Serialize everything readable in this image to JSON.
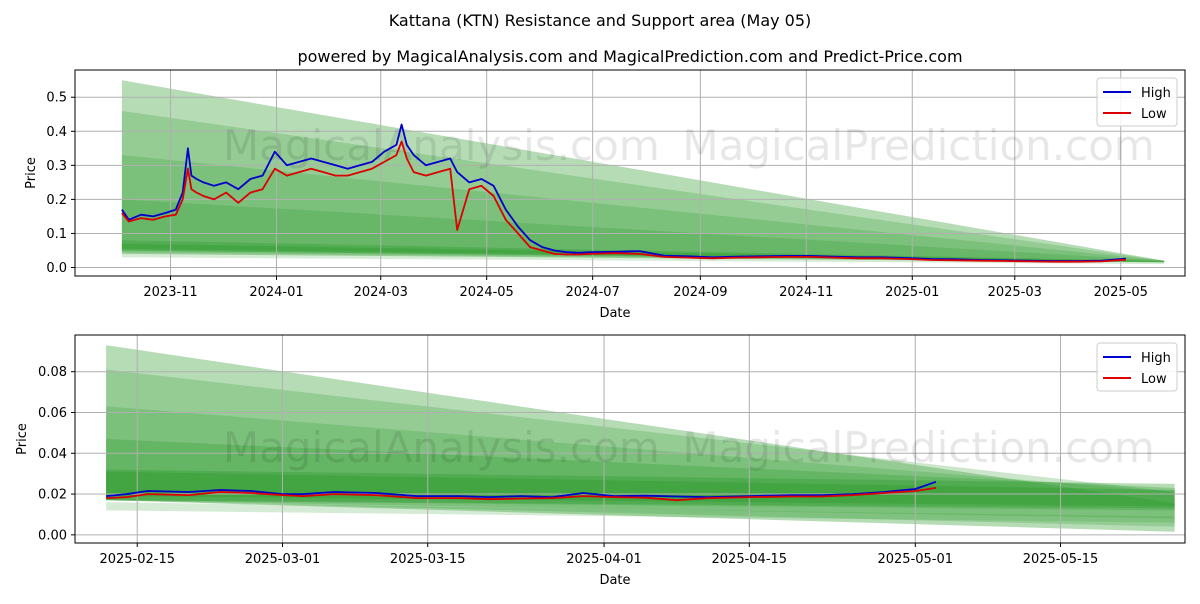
{
  "title": "Kattana (KTN) Resistance and Support area (May 05)",
  "subtitle": "powered by MagicalAnalysis.com and MagicalPrediction.com and Predict-Price.com",
  "watermarks": [
    "MagicalAnalysis.com",
    "MagicalPrediction.com"
  ],
  "colors": {
    "high": "#0000cc",
    "low": "#dd0000",
    "band": "#2e9a2e",
    "grid": "#b0b0b0"
  },
  "chart_data": [
    {
      "type": "line",
      "xlabel": "Date",
      "ylabel": "Price",
      "grid": true,
      "legend_placement": "top-right",
      "xlim": [
        "2023-09-07",
        "2025-06-07"
      ],
      "ylim": [
        -0.025,
        0.58
      ],
      "x_ticks": [
        "2023-11",
        "2024-01",
        "2024-03",
        "2024-05",
        "2024-07",
        "2024-09",
        "2024-11",
        "2025-01",
        "2025-03",
        "2025-05"
      ],
      "y_ticks": [
        "0.0",
        "0.1",
        "0.2",
        "0.3",
        "0.4",
        "0.5"
      ],
      "series": [
        {
          "name": "High",
          "x": [
            "2023-10-04",
            "2023-10-08",
            "2023-10-15",
            "2023-10-22",
            "2023-10-29",
            "2023-11-04",
            "2023-11-08",
            "2023-11-11",
            "2023-11-13",
            "2023-11-16",
            "2023-11-20",
            "2023-11-26",
            "2023-12-03",
            "2023-12-10",
            "2023-12-17",
            "2023-12-24",
            "2023-12-31",
            "2024-01-07",
            "2024-01-14",
            "2024-01-21",
            "2024-01-28",
            "2024-02-04",
            "2024-02-11",
            "2024-02-18",
            "2024-02-25",
            "2024-03-03",
            "2024-03-10",
            "2024-03-13",
            "2024-03-16",
            "2024-03-20",
            "2024-03-27",
            "2024-04-03",
            "2024-04-10",
            "2024-04-14",
            "2024-04-21",
            "2024-04-28",
            "2024-05-05",
            "2024-05-12",
            "2024-05-19",
            "2024-05-26",
            "2024-06-02",
            "2024-06-09",
            "2024-06-16",
            "2024-06-23",
            "2024-06-30",
            "2024-07-14",
            "2024-07-28",
            "2024-08-11",
            "2024-08-25",
            "2024-09-08",
            "2024-09-22",
            "2024-10-06",
            "2024-10-20",
            "2024-11-03",
            "2024-11-17",
            "2024-12-01",
            "2024-12-15",
            "2024-12-29",
            "2025-01-12",
            "2025-01-26",
            "2025-02-09",
            "2025-02-23",
            "2025-03-09",
            "2025-03-23",
            "2025-04-06",
            "2025-04-20",
            "2025-05-04"
          ],
          "values": [
            0.17,
            0.14,
            0.155,
            0.15,
            0.16,
            0.17,
            0.22,
            0.35,
            0.27,
            0.26,
            0.25,
            0.24,
            0.25,
            0.23,
            0.26,
            0.27,
            0.34,
            0.3,
            0.31,
            0.32,
            0.31,
            0.3,
            0.29,
            0.3,
            0.31,
            0.34,
            0.36,
            0.42,
            0.36,
            0.33,
            0.3,
            0.31,
            0.32,
            0.28,
            0.25,
            0.26,
            0.24,
            0.17,
            0.12,
            0.08,
            0.06,
            0.05,
            0.045,
            0.043,
            0.045,
            0.046,
            0.048,
            0.035,
            0.033,
            0.03,
            0.032,
            0.033,
            0.034,
            0.034,
            0.032,
            0.03,
            0.03,
            0.028,
            0.025,
            0.024,
            0.022,
            0.021,
            0.02,
            0.019,
            0.019,
            0.02,
            0.026
          ]
        },
        {
          "name": "Low",
          "x": [
            "2023-10-04",
            "2023-10-08",
            "2023-10-15",
            "2023-10-22",
            "2023-10-29",
            "2023-11-04",
            "2023-11-08",
            "2023-11-11",
            "2023-11-13",
            "2023-11-16",
            "2023-11-20",
            "2023-11-26",
            "2023-12-03",
            "2023-12-10",
            "2023-12-17",
            "2023-12-24",
            "2023-12-31",
            "2024-01-07",
            "2024-01-14",
            "2024-01-21",
            "2024-01-28",
            "2024-02-04",
            "2024-02-11",
            "2024-02-18",
            "2024-02-25",
            "2024-03-03",
            "2024-03-10",
            "2024-03-13",
            "2024-03-16",
            "2024-03-20",
            "2024-03-27",
            "2024-04-03",
            "2024-04-10",
            "2024-04-14",
            "2024-04-21",
            "2024-04-28",
            "2024-05-05",
            "2024-05-12",
            "2024-05-19",
            "2024-05-26",
            "2024-06-02",
            "2024-06-09",
            "2024-06-16",
            "2024-06-23",
            "2024-06-30",
            "2024-07-14",
            "2024-07-28",
            "2024-08-11",
            "2024-08-25",
            "2024-09-08",
            "2024-09-22",
            "2024-10-06",
            "2024-10-20",
            "2024-11-03",
            "2024-11-17",
            "2024-12-01",
            "2024-12-15",
            "2024-12-29",
            "2025-01-12",
            "2025-01-26",
            "2025-02-09",
            "2025-02-23",
            "2025-03-09",
            "2025-03-23",
            "2025-04-06",
            "2025-04-20",
            "2025-05-04"
          ],
          "values": [
            0.16,
            0.135,
            0.145,
            0.14,
            0.15,
            0.155,
            0.2,
            0.29,
            0.23,
            0.22,
            0.21,
            0.2,
            0.22,
            0.19,
            0.22,
            0.23,
            0.29,
            0.27,
            0.28,
            0.29,
            0.28,
            0.27,
            0.27,
            0.28,
            0.29,
            0.31,
            0.33,
            0.37,
            0.32,
            0.28,
            0.27,
            0.28,
            0.29,
            0.11,
            0.23,
            0.24,
            0.21,
            0.14,
            0.1,
            0.06,
            0.05,
            0.04,
            0.038,
            0.038,
            0.04,
            0.042,
            0.04,
            0.031,
            0.029,
            0.027,
            0.029,
            0.03,
            0.031,
            0.031,
            0.029,
            0.027,
            0.027,
            0.025,
            0.022,
            0.021,
            0.02,
            0.019,
            0.018,
            0.017,
            0.017,
            0.018,
            0.023
          ]
        }
      ],
      "bands": [
        {
          "x": [
            "2023-10-04",
            "2025-05-26"
          ],
          "lower": [
            0.04,
            0.015
          ],
          "upper": [
            0.55,
            0.02
          ],
          "opacity": 0.35
        },
        {
          "x": [
            "2023-10-04",
            "2025-05-26"
          ],
          "lower": [
            0.04,
            0.015
          ],
          "upper": [
            0.46,
            0.02
          ],
          "opacity": 0.25
        },
        {
          "x": [
            "2023-10-04",
            "2025-05-26"
          ],
          "lower": [
            0.045,
            0.015
          ],
          "upper": [
            0.33,
            0.02
          ],
          "opacity": 0.25
        },
        {
          "x": [
            "2023-10-04",
            "2025-05-26"
          ],
          "lower": [
            0.05,
            0.016
          ],
          "upper": [
            0.2,
            0.02
          ],
          "opacity": 0.25
        },
        {
          "x": [
            "2023-10-04",
            "2025-05-26"
          ],
          "lower": [
            0.05,
            0.016
          ],
          "upper": [
            0.08,
            0.019
          ],
          "opacity": 0.35
        },
        {
          "x": [
            "2023-10-04",
            "2025-05-26"
          ],
          "lower": [
            0.055,
            0.017
          ],
          "upper": [
            0.07,
            0.019
          ],
          "opacity": 0.4
        },
        {
          "x": [
            "2023-10-04",
            "2025-05-26"
          ],
          "lower": [
            0.03,
            0.01
          ],
          "upper": [
            0.04,
            0.015
          ],
          "opacity": 0.2
        }
      ]
    },
    {
      "type": "line",
      "xlabel": "Date",
      "ylabel": "Price",
      "grid": true,
      "legend_placement": "top-right",
      "xlim": [
        "2025-02-09",
        "2025-05-27"
      ],
      "ylim": [
        -0.004,
        0.098
      ],
      "x_ticks": [
        "2025-02-15",
        "2025-03-01",
        "2025-03-15",
        "2025-04-01",
        "2025-04-15",
        "2025-05-01",
        "2025-05-15"
      ],
      "y_ticks": [
        "0.00",
        "0.02",
        "0.04",
        "0.06",
        "0.08"
      ],
      "series": [
        {
          "name": "High",
          "x": [
            "2025-02-12",
            "2025-02-14",
            "2025-02-16",
            "2025-02-20",
            "2025-02-23",
            "2025-02-26",
            "2025-03-01",
            "2025-03-03",
            "2025-03-06",
            "2025-03-10",
            "2025-03-14",
            "2025-03-18",
            "2025-03-21",
            "2025-03-24",
            "2025-03-27",
            "2025-03-30",
            "2025-04-02",
            "2025-04-05",
            "2025-04-08",
            "2025-04-11",
            "2025-04-15",
            "2025-04-19",
            "2025-04-22",
            "2025-04-25",
            "2025-04-28",
            "2025-05-01",
            "2025-05-03"
          ],
          "values": [
            0.019,
            0.02,
            0.0215,
            0.021,
            0.022,
            0.0215,
            0.02,
            0.02,
            0.021,
            0.0205,
            0.019,
            0.019,
            0.0185,
            0.019,
            0.0185,
            0.0205,
            0.019,
            0.0192,
            0.0188,
            0.0185,
            0.019,
            0.0195,
            0.0195,
            0.02,
            0.021,
            0.0225,
            0.026
          ]
        },
        {
          "name": "Low",
          "x": [
            "2025-02-12",
            "2025-02-14",
            "2025-02-16",
            "2025-02-20",
            "2025-02-23",
            "2025-02-26",
            "2025-03-01",
            "2025-03-03",
            "2025-03-06",
            "2025-03-10",
            "2025-03-14",
            "2025-03-18",
            "2025-03-21",
            "2025-03-24",
            "2025-03-27",
            "2025-03-30",
            "2025-04-02",
            "2025-04-05",
            "2025-04-08",
            "2025-04-11",
            "2025-04-15",
            "2025-04-19",
            "2025-04-22",
            "2025-04-25",
            "2025-04-28",
            "2025-05-01",
            "2025-05-03"
          ],
          "values": [
            0.018,
            0.0185,
            0.02,
            0.0195,
            0.021,
            0.0205,
            0.0195,
            0.019,
            0.02,
            0.0195,
            0.018,
            0.018,
            0.0175,
            0.0178,
            0.018,
            0.019,
            0.0185,
            0.0182,
            0.017,
            0.018,
            0.0185,
            0.0188,
            0.0188,
            0.0195,
            0.0205,
            0.0215,
            0.023
          ]
        }
      ],
      "bands": [
        {
          "x": [
            "2025-02-12",
            "2025-05-26"
          ],
          "lower": [
            0.017,
            0.0015
          ],
          "upper": [
            0.093,
            0.0155
          ],
          "opacity": 0.35
        },
        {
          "x": [
            "2025-02-12",
            "2025-05-26"
          ],
          "lower": [
            0.017,
            0.004
          ],
          "upper": [
            0.081,
            0.021
          ],
          "opacity": 0.25
        },
        {
          "x": [
            "2025-02-12",
            "2025-05-26"
          ],
          "lower": [
            0.017,
            0.008
          ],
          "upper": [
            0.063,
            0.021
          ],
          "opacity": 0.25
        },
        {
          "x": [
            "2025-02-12",
            "2025-05-26"
          ],
          "lower": [
            0.017,
            0.012
          ],
          "upper": [
            0.047,
            0.023
          ],
          "opacity": 0.3
        },
        {
          "x": [
            "2025-02-12",
            "2025-05-26"
          ],
          "lower": [
            0.017,
            0.013
          ],
          "upper": [
            0.032,
            0.025
          ],
          "opacity": 0.35
        },
        {
          "x": [
            "2025-02-12",
            "2025-05-26"
          ],
          "lower": [
            0.019,
            0.014
          ],
          "upper": [
            0.031,
            0.022
          ],
          "opacity": 0.4
        },
        {
          "x": [
            "2025-02-12",
            "2025-05-26"
          ],
          "lower": [
            0.012,
            0.006
          ],
          "upper": [
            0.016,
            0.009
          ],
          "opacity": 0.2
        }
      ]
    }
  ]
}
